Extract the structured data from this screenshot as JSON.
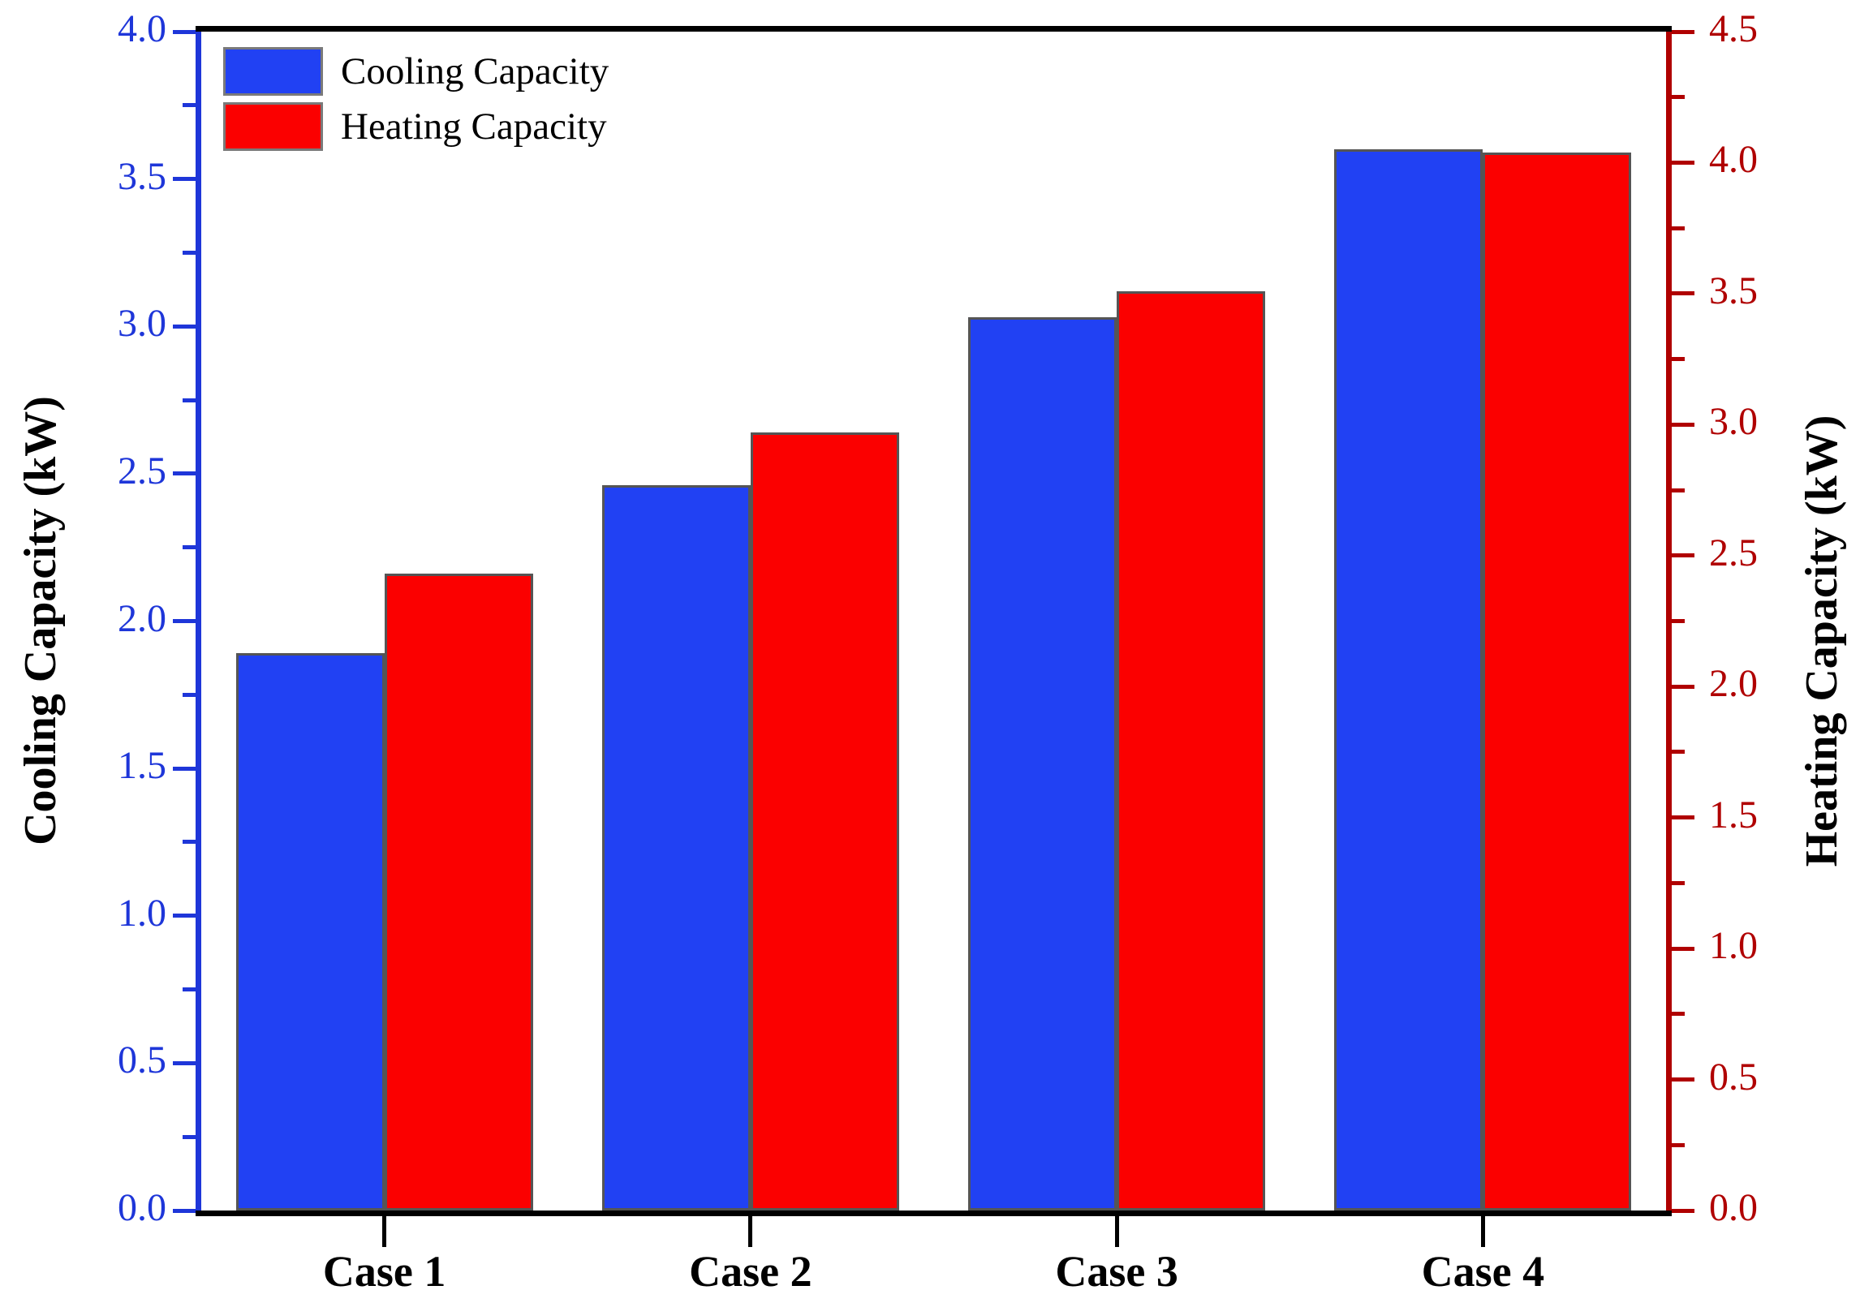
{
  "chart_data": {
    "type": "bar",
    "title": "",
    "categories": [
      "Case 1",
      "Case 2",
      "Case 3",
      "Case 4"
    ],
    "series": [
      {
        "name": "Cooling Capacity",
        "axis": "left",
        "color": "#2141f3",
        "values": [
          1.89,
          2.46,
          3.03,
          3.6
        ]
      },
      {
        "name": "Heating Capacity",
        "axis": "right",
        "color": "#fb0000",
        "values": [
          2.43,
          2.97,
          3.51,
          4.04
        ]
      }
    ],
    "left_axis": {
      "label": "Cooling Capacity (kW)",
      "min": 0.0,
      "max": 4.0,
      "major_step": 0.5,
      "minor_step": 0.25,
      "color": "#1e36d9",
      "tick_labels": [
        "0.0",
        "0.5",
        "1.0",
        "1.5",
        "2.0",
        "2.5",
        "3.0",
        "3.5",
        "4.0"
      ]
    },
    "right_axis": {
      "label": "Heating Capacity (kW)",
      "min": 0.0,
      "max": 4.5,
      "major_step": 0.5,
      "minor_step": 0.25,
      "color": "#b00000",
      "tick_labels": [
        "0.0",
        "0.5",
        "1.0",
        "1.5",
        "2.0",
        "2.5",
        "3.0",
        "3.5",
        "4.0",
        "4.5"
      ]
    },
    "legend": {
      "position": "top-left",
      "entries": [
        "Cooling Capacity",
        "Heating Capacity"
      ]
    },
    "grid": false,
    "bar_border_color": "#555555",
    "spine_color": "#000000"
  }
}
